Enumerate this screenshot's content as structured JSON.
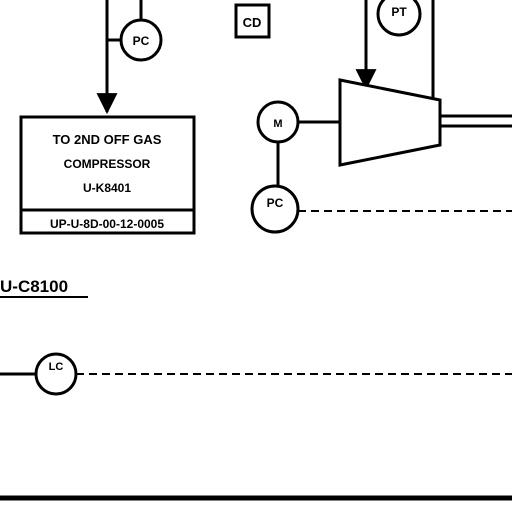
{
  "diagram": {
    "instruments": {
      "pc_top": "PC",
      "pt_top": "PT",
      "motor": "M",
      "pc_motor": "PC",
      "lc": "LC"
    },
    "cd_box": "CD",
    "destination": {
      "line1": "TO 2ND OFF GAS",
      "line2": "COMPRESSOR",
      "line3": "U-K8401",
      "ref": "UP-U-8D-00-12-0005"
    },
    "section_label": "U-C8100"
  }
}
